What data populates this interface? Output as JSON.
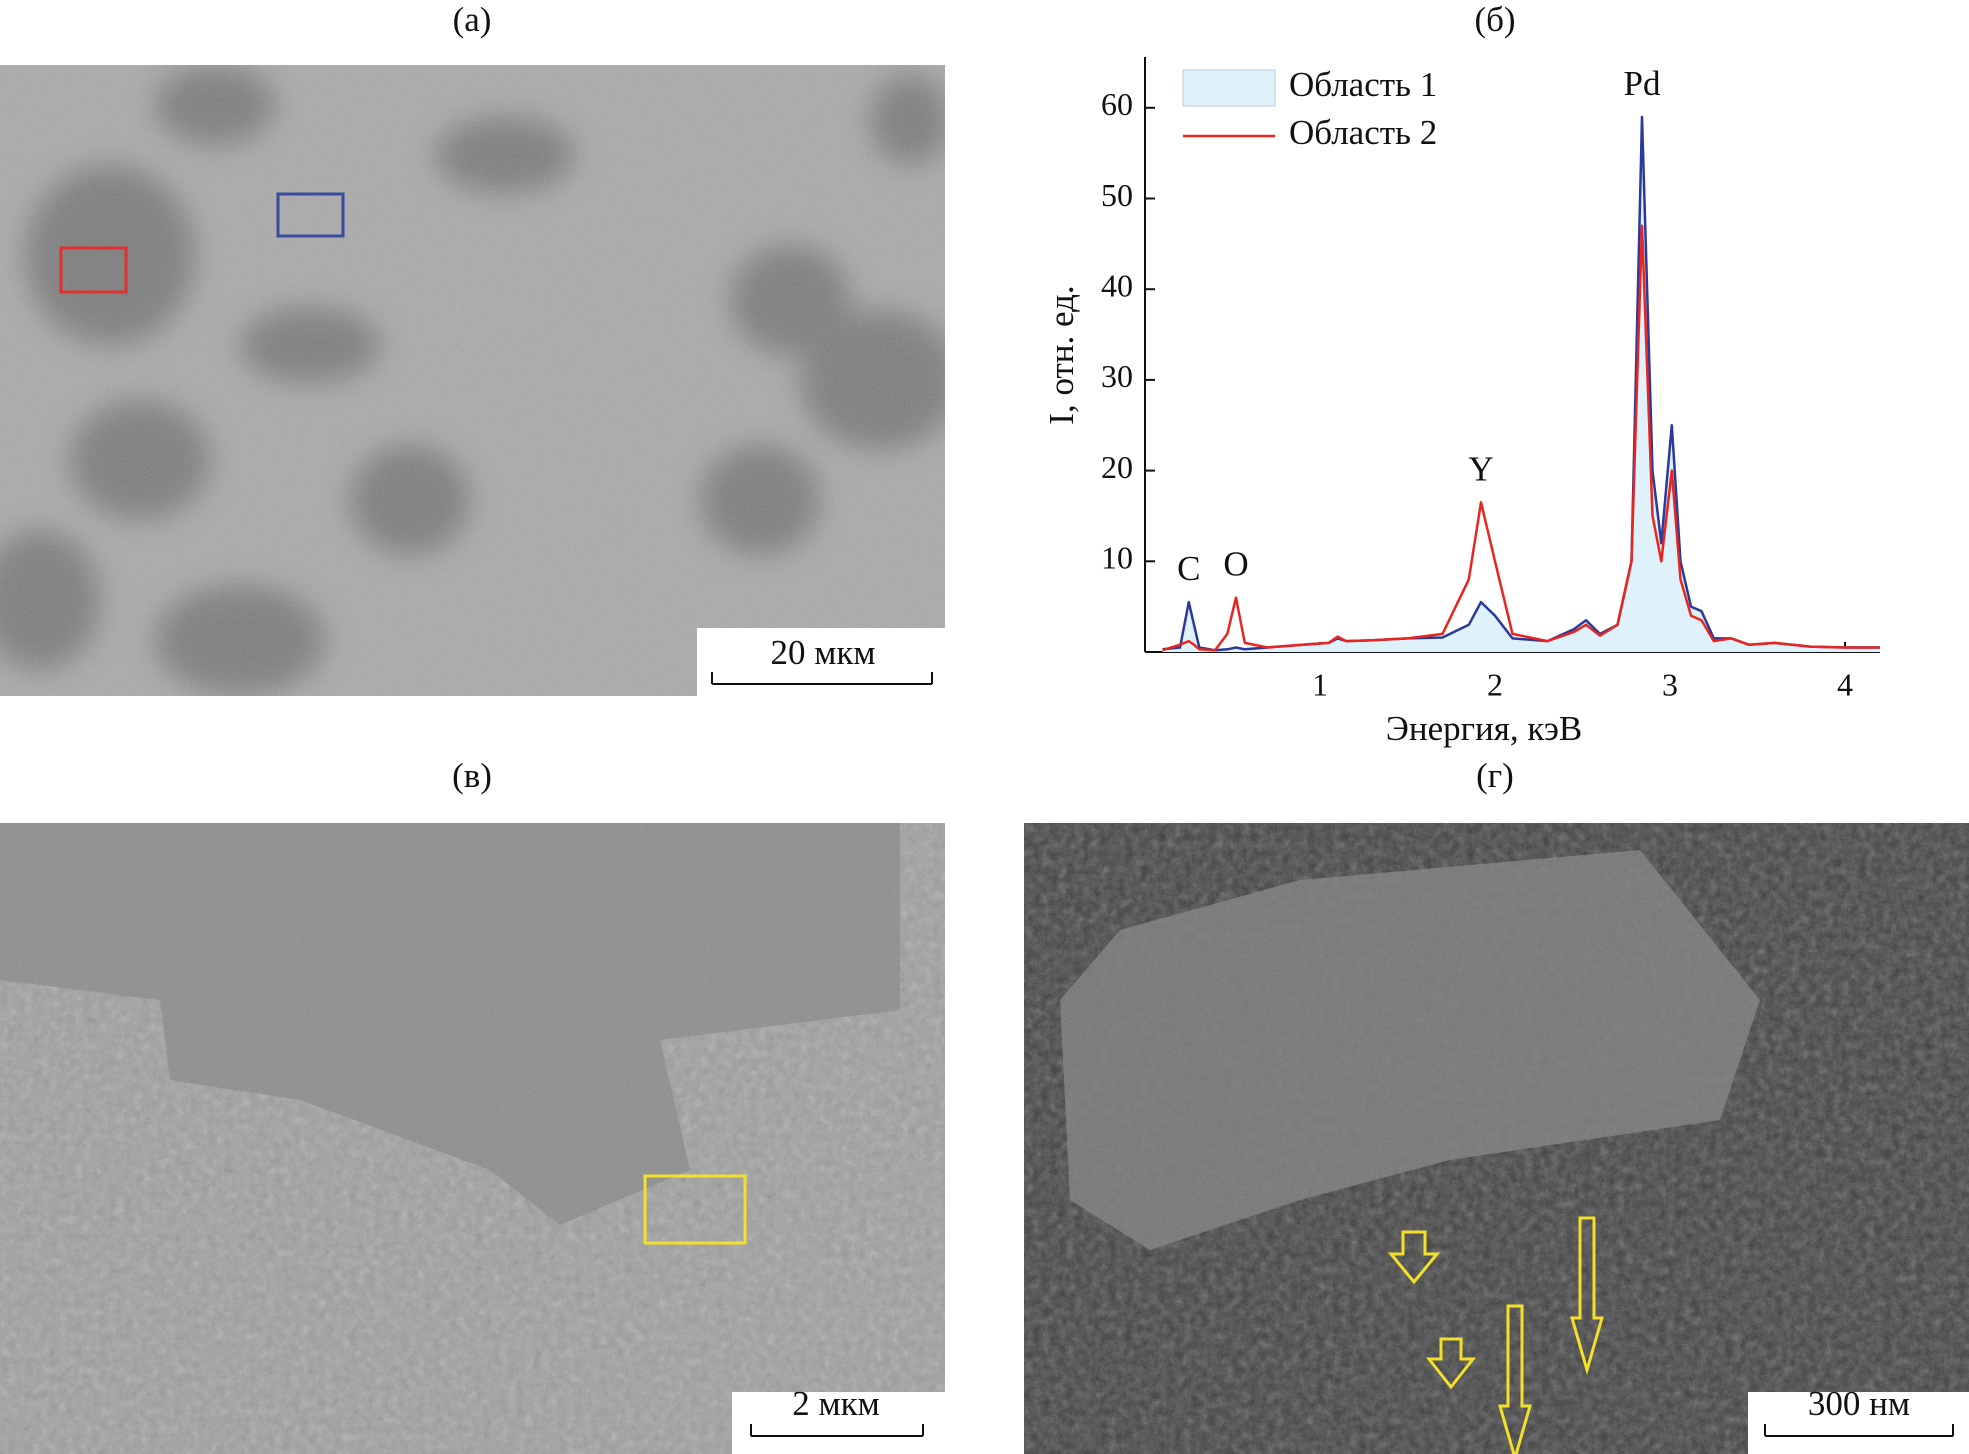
{
  "panels": [
    {
      "label": "(а)",
      "scale_bar": "20 мкм"
    },
    {
      "label": "(в)",
      "scale_bar": "2 мкм"
    },
    {
      "label": "(г)",
      "scale_bar": "300 нм"
    }
  ],
  "chart_data": {
    "type": "line",
    "label": "(б)",
    "x_label": "Энергия, кэВ",
    "y_label": "I, отн. ед.",
    "x": [
      0.1,
      0.2,
      0.25,
      0.28,
      0.31,
      0.4,
      0.47,
      0.52,
      0.57,
      0.7,
      0.9,
      1.05,
      1.1,
      1.15,
      1.3,
      1.5,
      1.7,
      1.85,
      1.92,
      2.0,
      2.1,
      2.3,
      2.45,
      2.52,
      2.6,
      2.7,
      2.78,
      2.84,
      2.9,
      2.95,
      3.01,
      3.06,
      3.12,
      3.18,
      3.25,
      3.35,
      3.45,
      3.6,
      3.8,
      4.0,
      4.2
    ],
    "series": [
      {
        "name": "Область 1",
        "color": "#2b3a9a",
        "fill": "#dff2fb",
        "values": [
          0.3,
          0.5,
          5.5,
          3,
          0.5,
          0.2,
          0.3,
          0.5,
          0.3,
          0.5,
          0.8,
          1.0,
          1.5,
          1.2,
          1.3,
          1.5,
          1.6,
          3,
          5.5,
          4,
          1.5,
          1.2,
          2.5,
          3.5,
          2,
          3,
          10,
          59,
          20,
          12,
          25,
          10,
          5,
          4.5,
          1.5,
          1.5,
          0.8,
          1.0,
          0.6,
          0.5,
          0.5
        ]
      },
      {
        "name": "Область 2",
        "color": "#e8261f",
        "values": [
          0.2,
          0.8,
          1.2,
          0.8,
          0.3,
          0.2,
          2,
          6,
          1,
          0.5,
          0.8,
          1.0,
          1.7,
          1.2,
          1.3,
          1.5,
          2,
          8,
          16.5,
          10,
          2,
          1.2,
          2.2,
          3,
          1.8,
          3,
          10,
          47,
          15,
          10,
          20,
          8,
          4,
          3.5,
          1.2,
          1.5,
          0.8,
          1.0,
          0.6,
          0.5,
          0.5
        ]
      }
    ],
    "peaks": [
      {
        "label": "C",
        "x": 0.25
      },
      {
        "label": "O",
        "x": 0.52
      },
      {
        "label": "Y",
        "x": 1.92
      },
      {
        "label": "Pd",
        "x": 2.84
      }
    ],
    "xlim": [
      0,
      4.2
    ],
    "ylim": [
      0,
      65.6
    ],
    "xticks": [
      1,
      2,
      3,
      4
    ],
    "yticks": [
      10,
      20,
      30,
      40,
      50,
      60
    ],
    "legend": "top-left"
  }
}
